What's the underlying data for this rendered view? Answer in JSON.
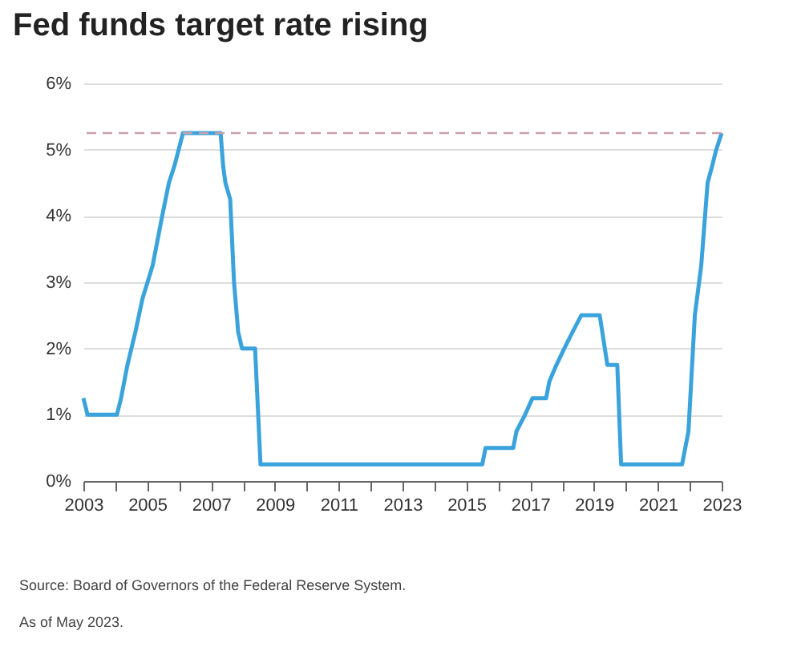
{
  "chart_data": {
    "type": "line",
    "title": "Fed funds target rate rising",
    "x": [
      2003.0,
      2003.13,
      2004.05,
      2004.18,
      2004.38,
      2004.63,
      2004.85,
      2005.17,
      2005.47,
      2005.68,
      2005.85,
      2006.12,
      2007.3,
      2007.38,
      2007.45,
      2007.6,
      2007.72,
      2007.85,
      2007.97,
      2008.38,
      2008.55,
      2015.5,
      2015.6,
      2016.47,
      2016.57,
      2016.84,
      2017.07,
      2017.5,
      2017.6,
      2017.82,
      2018.07,
      2018.33,
      2018.6,
      2019.18,
      2019.42,
      2019.73,
      2019.85,
      2021.76,
      2021.86,
      2021.96,
      2022.16,
      2022.36,
      2022.56,
      2022.7,
      2022.83,
      2023.0
    ],
    "series": [
      {
        "color": "#3aa3dc",
        "values": [
          1.25,
          1.0,
          1.0,
          1.25,
          1.75,
          2.25,
          2.75,
          3.25,
          4.0,
          4.5,
          4.75,
          5.25,
          5.25,
          4.75,
          4.5,
          4.25,
          3.0,
          2.25,
          2.0,
          2.0,
          0.25,
          0.25,
          0.5,
          0.5,
          0.75,
          1.0,
          1.25,
          1.25,
          1.5,
          1.75,
          2.0,
          2.25,
          2.5,
          2.5,
          1.75,
          1.75,
          0.25,
          0.25,
          0.5,
          0.75,
          2.5,
          3.25,
          4.5,
          4.75,
          5.0,
          5.25
        ]
      }
    ],
    "xlim": [
      2003,
      2023
    ],
    "xticks": [
      2003,
      {
        "value": 2004,
        "label": null
      },
      2005,
      {
        "value": 2006,
        "label": null
      },
      2007,
      {
        "value": 2008,
        "label": null
      },
      2009,
      {
        "value": 2010,
        "label": null
      },
      2011,
      {
        "value": 2012,
        "label": null
      },
      2013,
      {
        "value": 2014,
        "label": null
      },
      2015,
      {
        "value": 2016,
        "label": null
      },
      2017,
      {
        "value": 2018,
        "label": null
      },
      2019,
      {
        "value": 2020,
        "label": null
      },
      2021,
      {
        "value": 2022,
        "label": null
      },
      2023
    ],
    "ylim": [
      0,
      6
    ],
    "yticks": [
      {
        "value": 0,
        "label": "0%"
      },
      {
        "value": 1,
        "label": "1%"
      },
      {
        "value": 2,
        "label": "2%"
      },
      {
        "value": 3,
        "label": "3%"
      },
      {
        "value": 4,
        "label": "4%"
      },
      {
        "value": 5,
        "label": "5%"
      },
      {
        "value": 6,
        "label": "6%"
      }
    ],
    "ref_lines": [
      {
        "axis": "y",
        "value": 5.25,
        "color": "#c9a0a8",
        "line_style": "dashed"
      }
    ],
    "grid": "y",
    "marker": "none",
    "line_style": "solid",
    "annotations": [
      "Source: Board of Governors of the Federal Reserve System.",
      "As of May 2023."
    ]
  }
}
